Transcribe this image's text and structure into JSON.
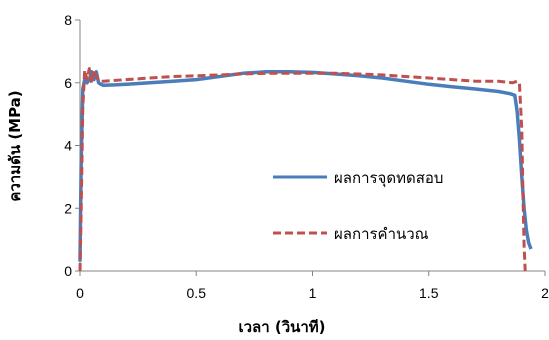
{
  "chart_data": {
    "type": "line",
    "title": "",
    "xlabel": "เวลา (วินาที)",
    "ylabel": "ความดัน (MPa)",
    "xlim": [
      0,
      2
    ],
    "ylim": [
      0,
      8
    ],
    "xticks": [
      "0",
      "0.5",
      "1",
      "1.5",
      "2"
    ],
    "yticks": [
      "0",
      "2",
      "4",
      "6",
      "8"
    ],
    "grid": false,
    "legend_position": "center-right",
    "series": [
      {
        "name": "ผลการจุดทดสอบ",
        "color": "#4a7ebb",
        "style": "solid",
        "x": [
          0.0,
          0.005,
          0.012,
          0.02,
          0.03,
          0.04,
          0.05,
          0.06,
          0.07,
          0.08,
          0.09,
          0.1,
          0.15,
          0.2,
          0.3,
          0.4,
          0.5,
          0.6,
          0.7,
          0.8,
          0.9,
          1.0,
          1.1,
          1.2,
          1.3,
          1.4,
          1.5,
          1.6,
          1.7,
          1.8,
          1.85,
          1.87,
          1.88,
          1.89,
          1.9,
          1.91,
          1.92,
          1.93,
          1.94
        ],
        "y": [
          0.3,
          3.5,
          5.8,
          6.1,
          6.0,
          6.1,
          6.35,
          6.1,
          6.35,
          6.0,
          5.95,
          5.92,
          5.93,
          5.95,
          6.0,
          6.05,
          6.1,
          6.2,
          6.3,
          6.35,
          6.35,
          6.33,
          6.28,
          6.22,
          6.15,
          6.05,
          5.95,
          5.87,
          5.8,
          5.72,
          5.65,
          5.6,
          5.1,
          4.2,
          3.0,
          2.0,
          1.3,
          0.9,
          0.7
        ]
      },
      {
        "name": "ผลการคำนวณ",
        "color": "#c0504d",
        "style": "dashed",
        "x": [
          0.0,
          0.005,
          0.012,
          0.02,
          0.03,
          0.04,
          0.05,
          0.06,
          0.08,
          0.1,
          0.2,
          0.3,
          0.4,
          0.5,
          0.6,
          0.7,
          0.8,
          0.9,
          1.0,
          1.1,
          1.2,
          1.3,
          1.4,
          1.5,
          1.6,
          1.7,
          1.8,
          1.86,
          1.88,
          1.89,
          1.9,
          1.905,
          1.91,
          1.915
        ],
        "y": [
          0.0,
          2.0,
          5.2,
          6.4,
          6.1,
          6.45,
          6.0,
          6.4,
          6.05,
          6.05,
          6.1,
          6.15,
          6.2,
          6.22,
          6.25,
          6.28,
          6.3,
          6.3,
          6.3,
          6.3,
          6.28,
          6.25,
          6.2,
          6.15,
          6.1,
          6.05,
          6.05,
          6.0,
          6.05,
          6.0,
          4.5,
          2.5,
          0.8,
          0.0
        ]
      }
    ]
  }
}
